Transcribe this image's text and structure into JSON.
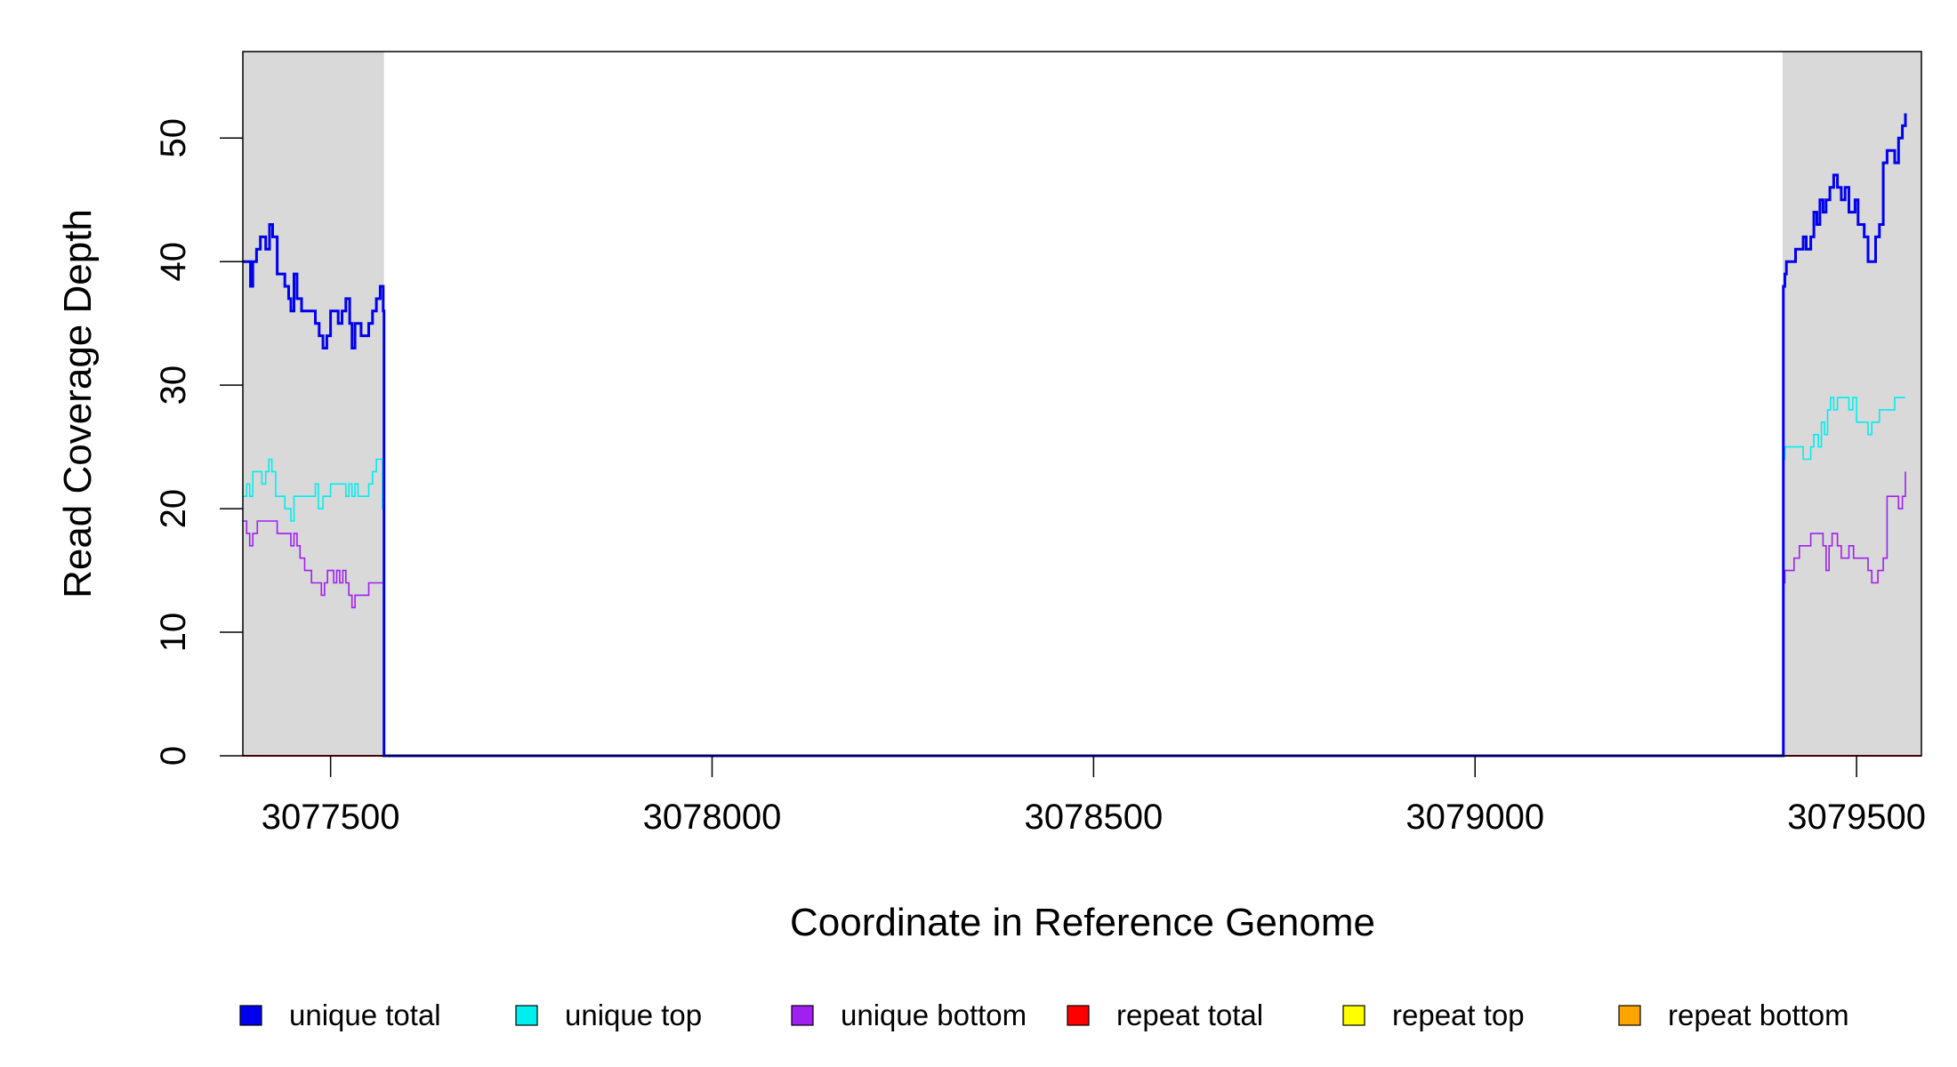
{
  "chart_data": {
    "type": "line",
    "title": "",
    "xlabel": "Coordinate in Reference Genome",
    "ylabel": "Read Coverage Depth",
    "xlim": [
      3077385,
      3079585
    ],
    "ylim": [
      0,
      57
    ],
    "x_ticks": [
      3077500,
      3078000,
      3078500,
      3079000,
      3079500
    ],
    "y_ticks": [
      0,
      10,
      20,
      30,
      40,
      50
    ],
    "grid": false,
    "shaded_regions": [
      {
        "x": [
          3077385,
          3077570
        ],
        "color": "#d9d9d9"
      },
      {
        "x": [
          3079403,
          3079585
        ],
        "color": "#d9d9d9"
      }
    ],
    "legend_position": "bottom",
    "series": [
      {
        "name": "unique total",
        "color": "#0000ee",
        "points": [
          [
            3077385,
            40
          ],
          [
            3077395,
            38
          ],
          [
            3077398,
            40
          ],
          [
            3077403,
            41
          ],
          [
            3077408,
            42
          ],
          [
            3077415,
            41
          ],
          [
            3077420,
            43
          ],
          [
            3077424,
            42
          ],
          [
            3077430,
            39
          ],
          [
            3077440,
            38
          ],
          [
            3077445,
            37
          ],
          [
            3077448,
            36
          ],
          [
            3077452,
            39
          ],
          [
            3077456,
            37
          ],
          [
            3077462,
            36
          ],
          [
            3077480,
            35
          ],
          [
            3077485,
            34
          ],
          [
            3077490,
            33
          ],
          [
            3077495,
            34
          ],
          [
            3077500,
            36
          ],
          [
            3077510,
            35
          ],
          [
            3077515,
            36
          ],
          [
            3077520,
            37
          ],
          [
            3077525,
            35
          ],
          [
            3077528,
            33
          ],
          [
            3077532,
            35
          ],
          [
            3077540,
            34
          ],
          [
            3077550,
            35
          ],
          [
            3077555,
            36
          ],
          [
            3077560,
            37
          ],
          [
            3077565,
            38
          ],
          [
            3077569,
            36
          ],
          [
            3077570,
            0
          ],
          [
            3079403,
            0
          ],
          [
            3079404,
            38
          ],
          [
            3079406,
            39
          ],
          [
            3079408,
            40
          ],
          [
            3079420,
            41
          ],
          [
            3079430,
            42
          ],
          [
            3079434,
            41
          ],
          [
            3079440,
            42
          ],
          [
            3079444,
            44
          ],
          [
            3079448,
            43
          ],
          [
            3079452,
            45
          ],
          [
            3079456,
            44
          ],
          [
            3079460,
            45
          ],
          [
            3079465,
            46
          ],
          [
            3079470,
            47
          ],
          [
            3079475,
            46
          ],
          [
            3079480,
            45
          ],
          [
            3079485,
            46
          ],
          [
            3079490,
            44
          ],
          [
            3079498,
            45
          ],
          [
            3079502,
            43
          ],
          [
            3079510,
            42
          ],
          [
            3079515,
            40
          ],
          [
            3079525,
            42
          ],
          [
            3079530,
            43
          ],
          [
            3079535,
            48
          ],
          [
            3079540,
            49
          ],
          [
            3079550,
            48
          ],
          [
            3079555,
            50
          ],
          [
            3079560,
            51
          ],
          [
            3079564,
            52
          ]
        ]
      },
      {
        "name": "unique top",
        "color": "#00eeee",
        "points": [
          [
            3077385,
            21
          ],
          [
            3077390,
            22
          ],
          [
            3077394,
            21
          ],
          [
            3077398,
            23
          ],
          [
            3077410,
            22
          ],
          [
            3077415,
            23
          ],
          [
            3077419,
            24
          ],
          [
            3077423,
            23
          ],
          [
            3077428,
            21
          ],
          [
            3077440,
            20
          ],
          [
            3077448,
            19
          ],
          [
            3077452,
            21
          ],
          [
            3077480,
            22
          ],
          [
            3077484,
            20
          ],
          [
            3077490,
            21
          ],
          [
            3077500,
            22
          ],
          [
            3077520,
            21
          ],
          [
            3077524,
            22
          ],
          [
            3077528,
            21
          ],
          [
            3077532,
            22
          ],
          [
            3077536,
            21
          ],
          [
            3077550,
            22
          ],
          [
            3077555,
            23
          ],
          [
            3077560,
            24
          ],
          [
            3077568,
            20
          ],
          [
            3077570,
            0
          ],
          [
            3079403,
            0
          ],
          [
            3079404,
            24
          ],
          [
            3079406,
            25
          ],
          [
            3079430,
            24
          ],
          [
            3079440,
            25
          ],
          [
            3079444,
            26
          ],
          [
            3079450,
            25
          ],
          [
            3079454,
            27
          ],
          [
            3079458,
            26
          ],
          [
            3079462,
            28
          ],
          [
            3079466,
            29
          ],
          [
            3079470,
            28
          ],
          [
            3079475,
            29
          ],
          [
            3079490,
            28
          ],
          [
            3079495,
            29
          ],
          [
            3079500,
            27
          ],
          [
            3079515,
            26
          ],
          [
            3079520,
            27
          ],
          [
            3079530,
            28
          ],
          [
            3079550,
            29
          ],
          [
            3079564,
            29
          ]
        ]
      },
      {
        "name": "unique bottom",
        "color": "#a020f0",
        "points": [
          [
            3077385,
            19
          ],
          [
            3077390,
            18
          ],
          [
            3077394,
            17
          ],
          [
            3077398,
            18
          ],
          [
            3077404,
            19
          ],
          [
            3077430,
            18
          ],
          [
            3077448,
            17
          ],
          [
            3077452,
            18
          ],
          [
            3077456,
            17
          ],
          [
            3077460,
            16
          ],
          [
            3077466,
            15
          ],
          [
            3077475,
            14
          ],
          [
            3077488,
            13
          ],
          [
            3077492,
            14
          ],
          [
            3077496,
            15
          ],
          [
            3077504,
            14
          ],
          [
            3077508,
            15
          ],
          [
            3077512,
            14
          ],
          [
            3077516,
            15
          ],
          [
            3077520,
            14
          ],
          [
            3077524,
            13
          ],
          [
            3077528,
            12
          ],
          [
            3077532,
            13
          ],
          [
            3077550,
            14
          ],
          [
            3077568,
            14
          ],
          [
            3077570,
            0
          ],
          [
            3079403,
            0
          ],
          [
            3079404,
            14
          ],
          [
            3079406,
            15
          ],
          [
            3079418,
            16
          ],
          [
            3079425,
            17
          ],
          [
            3079440,
            18
          ],
          [
            3079456,
            17
          ],
          [
            3079460,
            15
          ],
          [
            3079464,
            17
          ],
          [
            3079468,
            18
          ],
          [
            3079475,
            17
          ],
          [
            3079480,
            16
          ],
          [
            3079490,
            17
          ],
          [
            3079496,
            16
          ],
          [
            3079515,
            15
          ],
          [
            3079520,
            14
          ],
          [
            3079528,
            15
          ],
          [
            3079535,
            16
          ],
          [
            3079540,
            21
          ],
          [
            3079555,
            20
          ],
          [
            3079560,
            21
          ],
          [
            3079564,
            23
          ]
        ]
      },
      {
        "name": "repeat total",
        "color": "#ff0000",
        "points": [
          [
            3077385,
            0
          ],
          [
            3079585,
            0
          ]
        ]
      },
      {
        "name": "repeat top",
        "color": "#ffff00",
        "points": [
          [
            3077385,
            0
          ],
          [
            3079585,
            0
          ]
        ]
      },
      {
        "name": "repeat bottom",
        "color": "#ffa500",
        "points": [
          [
            3077385,
            0
          ],
          [
            3079585,
            0
          ]
        ]
      }
    ]
  }
}
